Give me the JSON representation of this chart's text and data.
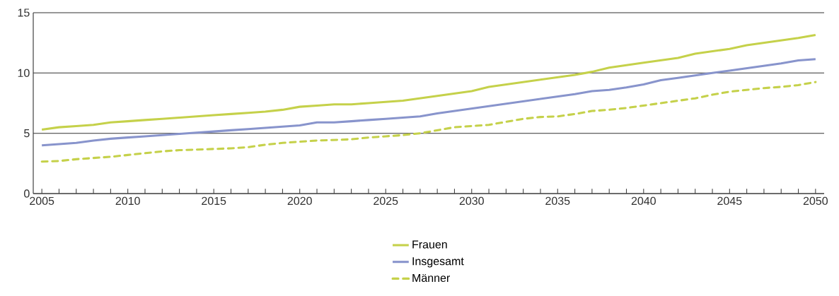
{
  "chart_data": {
    "type": "line",
    "x": [
      2005,
      2006,
      2007,
      2008,
      2009,
      2010,
      2011,
      2012,
      2013,
      2014,
      2015,
      2016,
      2017,
      2018,
      2019,
      2020,
      2021,
      2022,
      2023,
      2024,
      2025,
      2026,
      2027,
      2028,
      2029,
      2030,
      2031,
      2032,
      2033,
      2034,
      2035,
      2036,
      2037,
      2038,
      2039,
      2040,
      2041,
      2042,
      2043,
      2044,
      2045,
      2046,
      2047,
      2048,
      2049,
      2050
    ],
    "series": [
      {
        "name": "Frauen",
        "color": "#c5d14a",
        "line_style": "solid",
        "values": [
          5.3,
          5.5,
          5.6,
          5.7,
          5.9,
          6.0,
          6.1,
          6.2,
          6.3,
          6.4,
          6.5,
          6.6,
          6.7,
          6.8,
          6.95,
          7.2,
          7.3,
          7.4,
          7.4,
          7.5,
          7.6,
          7.7,
          7.9,
          8.1,
          8.3,
          8.5,
          8.85,
          9.05,
          9.25,
          9.45,
          9.65,
          9.85,
          10.1,
          10.45,
          10.65,
          10.85,
          11.05,
          11.25,
          11.6,
          11.8,
          12.0,
          12.3,
          12.5,
          12.7,
          12.9,
          13.15
        ]
      },
      {
        "name": "Insgesamt",
        "color": "#8894cc",
        "line_style": "solid",
        "values": [
          4.0,
          4.1,
          4.2,
          4.4,
          4.55,
          4.65,
          4.75,
          4.85,
          4.95,
          5.05,
          5.15,
          5.25,
          5.35,
          5.45,
          5.55,
          5.65,
          5.9,
          5.9,
          6.0,
          6.1,
          6.2,
          6.3,
          6.4,
          6.65,
          6.85,
          7.05,
          7.25,
          7.45,
          7.65,
          7.85,
          8.05,
          8.25,
          8.5,
          8.6,
          8.8,
          9.05,
          9.4,
          9.6,
          9.8,
          10.0,
          10.2,
          10.4,
          10.6,
          10.8,
          11.05,
          11.15
        ]
      },
      {
        "name": "Männer",
        "color": "#c5d14a",
        "line_style": "dashed",
        "values": [
          2.65,
          2.7,
          2.85,
          2.95,
          3.05,
          3.2,
          3.35,
          3.5,
          3.6,
          3.65,
          3.7,
          3.75,
          3.85,
          4.05,
          4.2,
          4.3,
          4.4,
          4.45,
          4.5,
          4.65,
          4.75,
          4.85,
          5.0,
          5.25,
          5.5,
          5.6,
          5.7,
          5.95,
          6.2,
          6.35,
          6.4,
          6.6,
          6.85,
          6.95,
          7.1,
          7.3,
          7.5,
          7.7,
          7.9,
          8.2,
          8.45,
          8.6,
          8.75,
          8.85,
          9.0,
          9.25
        ]
      }
    ],
    "xlim": [
      2004.5,
      2050.5
    ],
    "xticks": [
      2005,
      2010,
      2015,
      2020,
      2025,
      2030,
      2035,
      2040,
      2045,
      2050
    ],
    "ylim": [
      0,
      15
    ],
    "yticks": [
      0,
      5,
      10,
      15
    ],
    "grid": "y",
    "legend": "bottom",
    "marker": "none"
  }
}
